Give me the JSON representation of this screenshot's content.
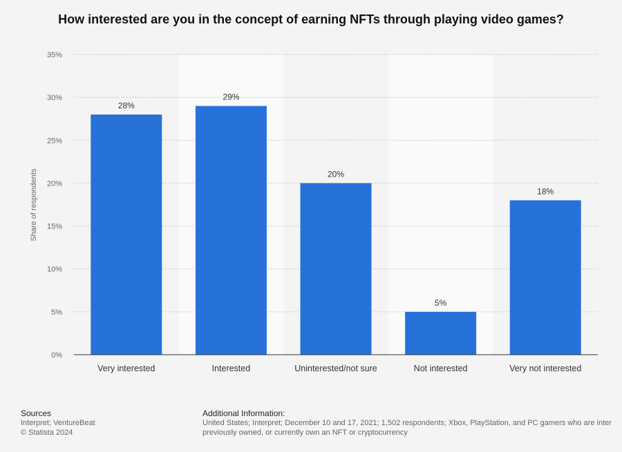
{
  "chart_data": {
    "type": "bar",
    "title": "How interested are you in the concept of earning NFTs through playing video games?",
    "ylabel": "Share of respondents",
    "categories": [
      "Very interested",
      "Interested",
      "Uninterested/not sure",
      "Not interested",
      "Very not interested"
    ],
    "values": [
      28,
      29,
      20,
      5,
      18
    ],
    "value_labels": [
      "28%",
      "29%",
      "20%",
      "5%",
      "18%"
    ],
    "ylim": [
      0,
      35
    ],
    "yticks": [
      0,
      5,
      10,
      15,
      20,
      25,
      30,
      35
    ],
    "ytick_labels": [
      "0%",
      "5%",
      "10%",
      "15%",
      "20%",
      "25%",
      "30%",
      "35%"
    ],
    "bar_color": "#2672d9",
    "grid": true
  },
  "footer": {
    "sources_heading": "Sources",
    "sources_line1": "Interpret; VentureBeat",
    "sources_line2": "© Statista 2024",
    "additional_heading": "Additional Information:",
    "additional_line1": "United States; Interpret; December 10 and 17, 2021; 1,502 respondents; Xbox, PlayStation, and PC gamers who are inter",
    "additional_line2": "previously owned, or currently own an NFT or cryptocurrency"
  }
}
